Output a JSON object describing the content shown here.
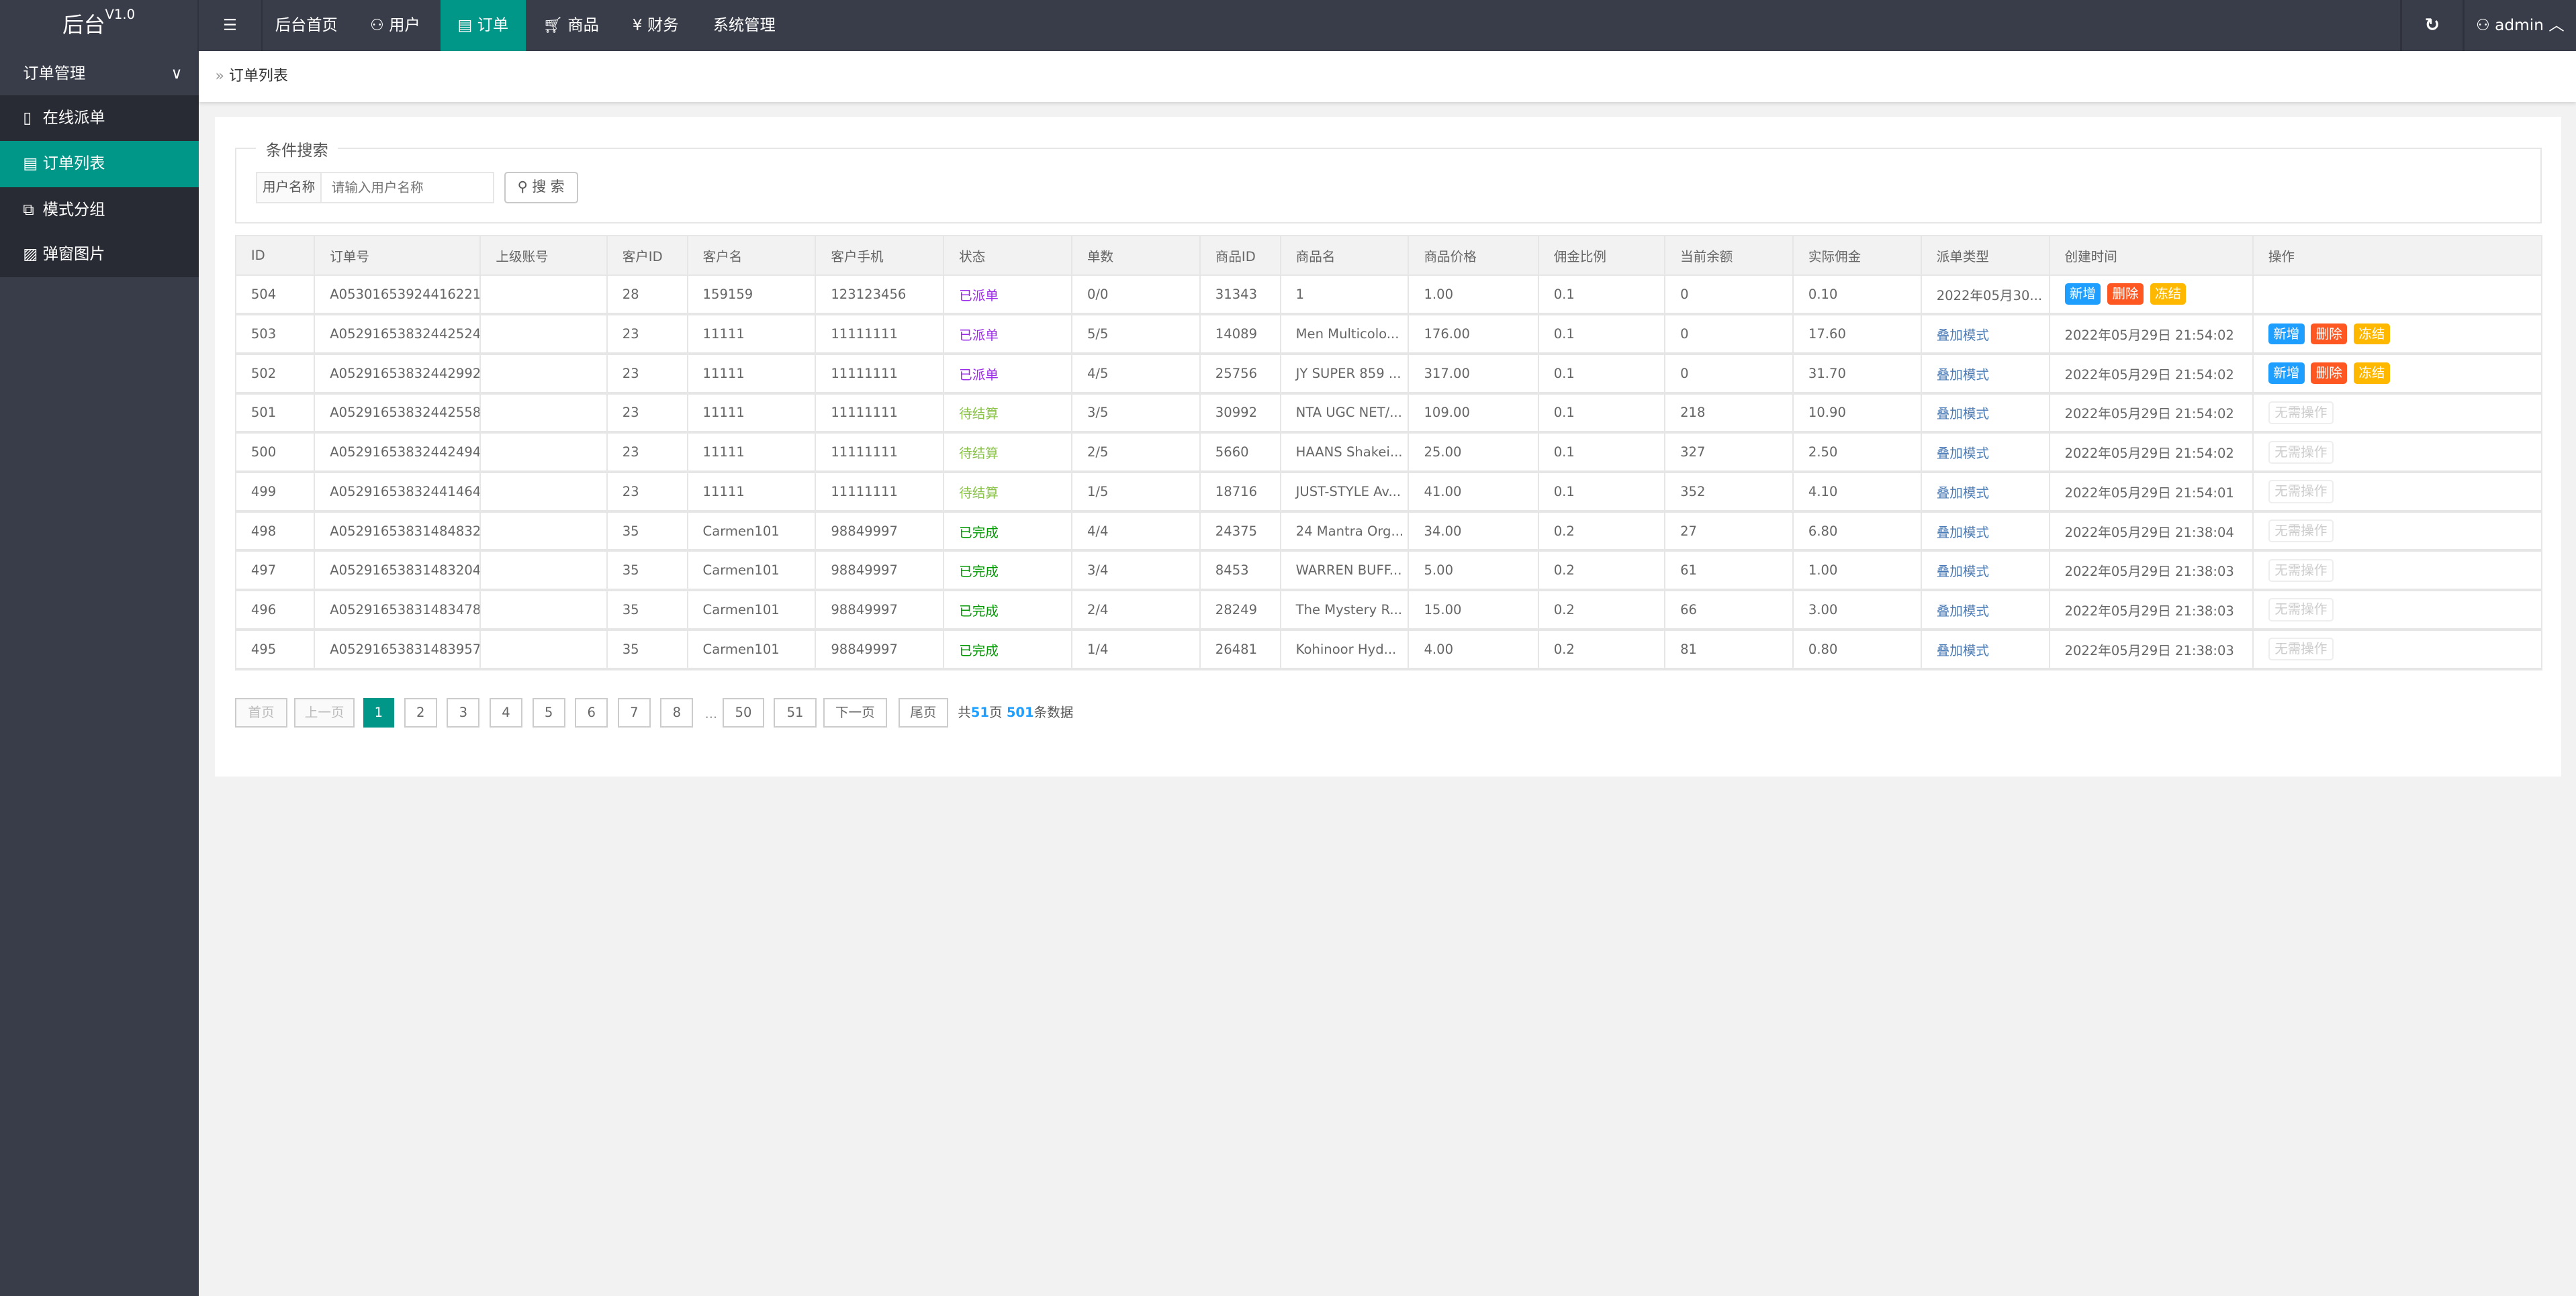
{
  "app": {
    "title": "后台",
    "version": "V1.0"
  },
  "topnav": {
    "items": [
      {
        "label": "后台首页",
        "icon": ""
      },
      {
        "label": "用户",
        "icon": "user-icon"
      },
      {
        "label": "订单",
        "icon": "document-icon",
        "active": true
      },
      {
        "label": "商品",
        "icon": "cart-icon"
      },
      {
        "label": "财务",
        "icon": "yen-icon"
      },
      {
        "label": "系统管理",
        "icon": ""
      }
    ],
    "user": "admin"
  },
  "sidebar": {
    "group": "订单管理",
    "items": [
      {
        "label": "在线派单",
        "icon": "tablet-icon"
      },
      {
        "label": "订单列表",
        "icon": "list-icon",
        "active": true
      },
      {
        "label": "模式分组",
        "icon": "group-icon"
      },
      {
        "label": "弹窗图片",
        "icon": "image-icon"
      }
    ]
  },
  "breadcrumb": "订单列表",
  "search": {
    "legend": "条件搜索",
    "label": "用户名称",
    "placeholder": "请输入用户名称",
    "button": "搜 索"
  },
  "table": {
    "headers": [
      "ID",
      "订单号",
      "上级账号",
      "客户ID",
      "客户名",
      "客户手机",
      "状态",
      "单数",
      "商品ID",
      "商品名",
      "商品价格",
      "佣金比例",
      "当前余额",
      "实际佣金",
      "派单类型",
      "创建时间",
      "操作"
    ],
    "rows": [
      {
        "id": "504",
        "order_no": "A05301653924416221",
        "parent": "",
        "cid": "28",
        "cname": "159159",
        "phone": "123123456",
        "status": "已派单",
        "status_kind": "dispatched",
        "count": "0/0",
        "gid": "31343",
        "gname": "1",
        "price": "1.00",
        "rate": "0.1",
        "balance": "0",
        "commission": "0.10",
        "dtype": "2022年05月30...",
        "dtype_plain": true,
        "created": "",
        "actions_in_time_column": true,
        "actions": [
          "新增",
          "删除",
          "冻结"
        ]
      },
      {
        "id": "503",
        "order_no": "A05291653832442524",
        "parent": "",
        "cid": "23",
        "cname": "11111",
        "phone": "11111111",
        "status": "已派单",
        "status_kind": "dispatched",
        "count": "5/5",
        "gid": "14089",
        "gname": "Men Multicolo...",
        "price": "176.00",
        "rate": "0.1",
        "balance": "0",
        "commission": "17.60",
        "dtype": "叠加模式",
        "created": "2022年05月29日 21:54:02",
        "actions": [
          "新增",
          "删除",
          "冻结"
        ]
      },
      {
        "id": "502",
        "order_no": "A05291653832442992",
        "parent": "",
        "cid": "23",
        "cname": "11111",
        "phone": "11111111",
        "status": "已派单",
        "status_kind": "dispatched",
        "count": "4/5",
        "gid": "25756",
        "gname": "JY SUPER 859 ...",
        "price": "317.00",
        "rate": "0.1",
        "balance": "0",
        "commission": "31.70",
        "dtype": "叠加模式",
        "created": "2022年05月29日 21:54:02",
        "actions": [
          "新增",
          "删除",
          "冻结"
        ]
      },
      {
        "id": "501",
        "order_no": "A05291653832442558",
        "parent": "",
        "cid": "23",
        "cname": "11111",
        "phone": "11111111",
        "status": "待结算",
        "status_kind": "pending",
        "count": "3/5",
        "gid": "30992",
        "gname": "NTA UGC NET/...",
        "price": "109.00",
        "rate": "0.1",
        "balance": "218",
        "commission": "10.90",
        "dtype": "叠加模式",
        "created": "2022年05月29日 21:54:02",
        "actions": [
          "无需操作"
        ]
      },
      {
        "id": "500",
        "order_no": "A05291653832442494",
        "parent": "",
        "cid": "23",
        "cname": "11111",
        "phone": "11111111",
        "status": "待结算",
        "status_kind": "pending",
        "count": "2/5",
        "gid": "5660",
        "gname": "HAANS Shakei...",
        "price": "25.00",
        "rate": "0.1",
        "balance": "327",
        "commission": "2.50",
        "dtype": "叠加模式",
        "created": "2022年05月29日 21:54:02",
        "actions": [
          "无需操作"
        ]
      },
      {
        "id": "499",
        "order_no": "A05291653832441464",
        "parent": "",
        "cid": "23",
        "cname": "11111",
        "phone": "11111111",
        "status": "待结算",
        "status_kind": "pending",
        "count": "1/5",
        "gid": "18716",
        "gname": "JUST-STYLE Av...",
        "price": "41.00",
        "rate": "0.1",
        "balance": "352",
        "commission": "4.10",
        "dtype": "叠加模式",
        "created": "2022年05月29日 21:54:01",
        "actions": [
          "无需操作"
        ]
      },
      {
        "id": "498",
        "order_no": "A05291653831484832",
        "parent": "",
        "cid": "35",
        "cname": "Carmen101",
        "phone": "98849997",
        "status": "已完成",
        "status_kind": "done",
        "count": "4/4",
        "gid": "24375",
        "gname": "24 Mantra Org...",
        "price": "34.00",
        "rate": "0.2",
        "balance": "27",
        "commission": "6.80",
        "dtype": "叠加模式",
        "created": "2022年05月29日 21:38:04",
        "actions": [
          "无需操作"
        ]
      },
      {
        "id": "497",
        "order_no": "A05291653831483204",
        "parent": "",
        "cid": "35",
        "cname": "Carmen101",
        "phone": "98849997",
        "status": "已完成",
        "status_kind": "done",
        "count": "3/4",
        "gid": "8453",
        "gname": "WARREN BUFF...",
        "price": "5.00",
        "rate": "0.2",
        "balance": "61",
        "commission": "1.00",
        "dtype": "叠加模式",
        "created": "2022年05月29日 21:38:03",
        "actions": [
          "无需操作"
        ]
      },
      {
        "id": "496",
        "order_no": "A05291653831483478",
        "parent": "",
        "cid": "35",
        "cname": "Carmen101",
        "phone": "98849997",
        "status": "已完成",
        "status_kind": "done",
        "count": "2/4",
        "gid": "28249",
        "gname": "The Mystery R...",
        "price": "15.00",
        "rate": "0.2",
        "balance": "66",
        "commission": "3.00",
        "dtype": "叠加模式",
        "created": "2022年05月29日 21:38:03",
        "actions": [
          "无需操作"
        ]
      },
      {
        "id": "495",
        "order_no": "A05291653831483957",
        "parent": "",
        "cid": "35",
        "cname": "Carmen101",
        "phone": "98849997",
        "status": "已完成",
        "status_kind": "done",
        "count": "1/4",
        "gid": "26481",
        "gname": "Kohinoor Hyd...",
        "price": "4.00",
        "rate": "0.2",
        "balance": "81",
        "commission": "0.80",
        "dtype": "叠加模式",
        "created": "2022年05月29日 21:38:03",
        "actions": [
          "无需操作"
        ]
      }
    ]
  },
  "pagination": {
    "first": "首页",
    "prev": "上一页",
    "pages": [
      "1",
      "2",
      "3",
      "4",
      "5",
      "6",
      "7",
      "8"
    ],
    "ellipsis": "...",
    "tail_pages": [
      "50",
      "51"
    ],
    "next": "下一页",
    "last": "尾页",
    "current": "1",
    "info_prefix": "共",
    "total_pages": "51",
    "info_mid": "页 ",
    "total_records": "501",
    "info_suffix": "条数据"
  },
  "colors": {
    "accent": "#009688",
    "topbar": "#393D49",
    "add": "#1E9FFF",
    "delete": "#FF5722",
    "freeze": "#FFB800"
  }
}
